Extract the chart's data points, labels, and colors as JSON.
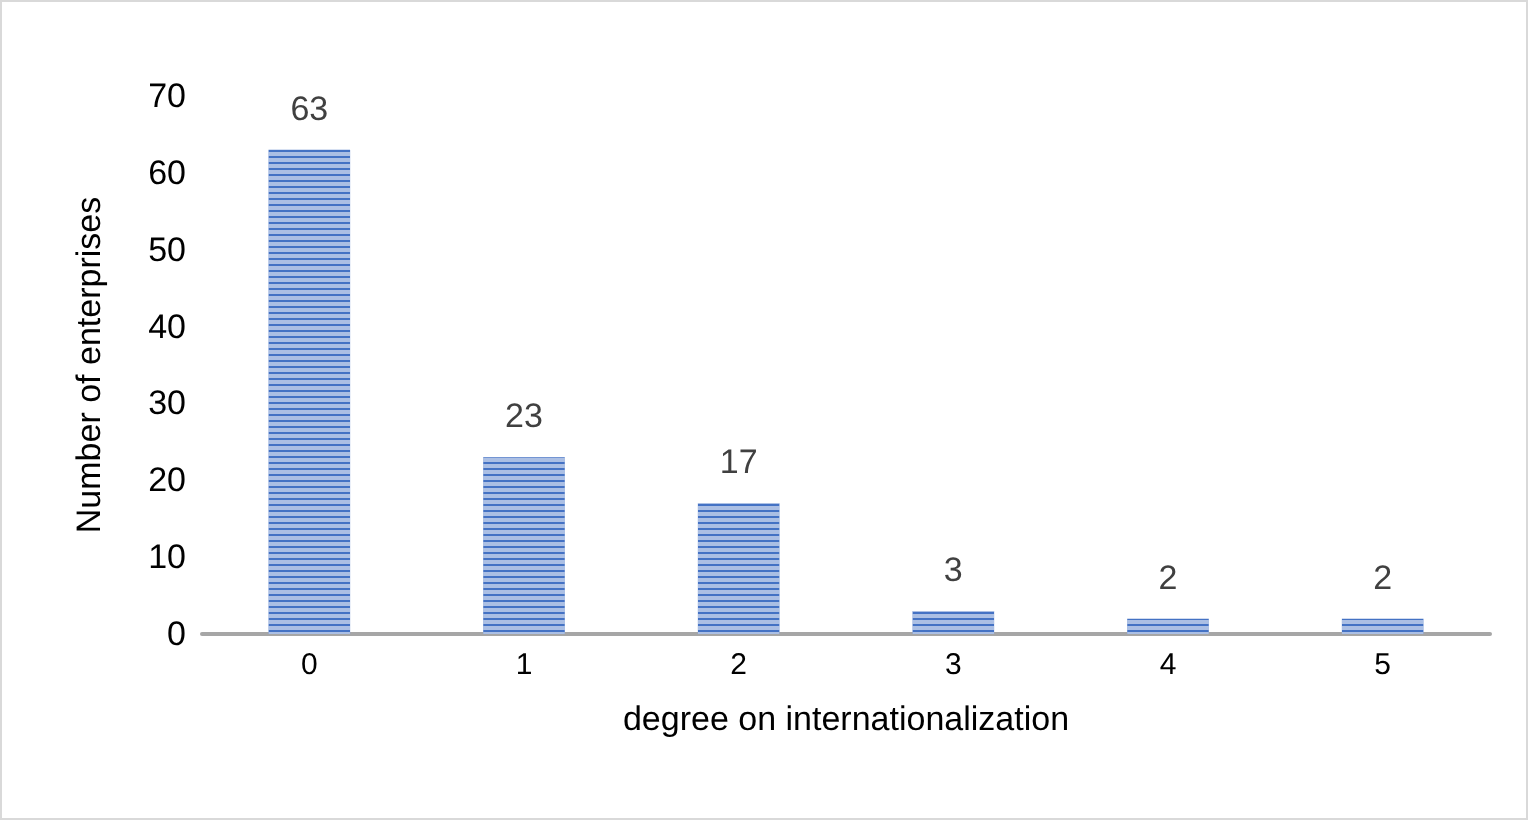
{
  "chart_data": {
    "type": "bar",
    "categories": [
      "0",
      "1",
      "2",
      "3",
      "4",
      "5"
    ],
    "values": [
      63,
      23,
      17,
      3,
      2,
      2
    ],
    "color": "#4472c4",
    "xlabel": "degree on internationalization",
    "ylabel": "Number of enterprises",
    "ylim": [
      0,
      70
    ],
    "yticks": [
      0,
      10,
      20,
      30,
      40,
      50,
      60,
      70
    ],
    "grid": false,
    "data_labels": true
  }
}
